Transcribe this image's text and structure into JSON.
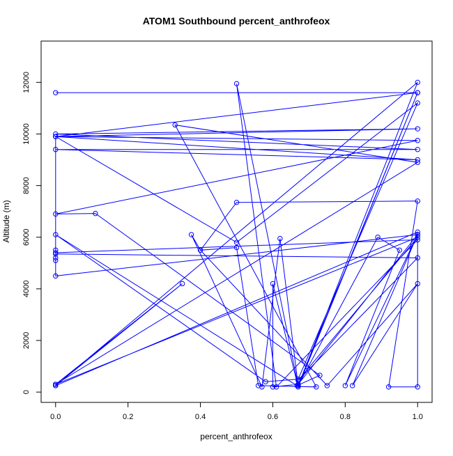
{
  "chart_data": {
    "type": "line",
    "title": "ATOM1 Southbound percent_anthrofeox",
    "xlabel": "percent_anthrofeox",
    "ylabel": "Altitude (m)",
    "xlim": [
      -0.04,
      1.04
    ],
    "ylim": [
      -400,
      13600
    ],
    "x_ticks": [
      0.0,
      0.2,
      0.4,
      0.6,
      0.8,
      1.0
    ],
    "x_tick_labels": [
      "0.0",
      "0.2",
      "0.4",
      "0.6",
      "0.8",
      "1.0"
    ],
    "y_ticks": [
      0,
      2000,
      4000,
      6000,
      8000,
      10000,
      12000
    ],
    "y_tick_labels": [
      "0",
      "2000",
      "4000",
      "6000",
      "8000",
      "10000",
      "12000"
    ],
    "grid": false,
    "legend": "none",
    "markers": "open-circle",
    "color": "#0000ff",
    "series": [
      {
        "x": [
          0.0,
          1.0,
          0.0,
          1.0,
          0.0,
          1.0,
          0.0,
          1.0,
          0.0,
          1.0,
          0.0,
          0.11,
          0.73,
          0.667,
          0.0,
          0.58,
          0.67,
          1.0,
          0.5,
          0.0,
          0.0,
          0.0,
          0.0,
          0.0,
          1.0,
          0.67,
          0.6,
          0.6,
          0.67,
          1.0,
          0.67,
          1.0,
          0.0,
          0.0,
          1.0,
          0.67,
          1.0,
          0.0,
          0.0,
          1.0,
          0.61,
          0.5,
          0.67,
          0.89,
          0.95,
          0.8,
          1.0,
          0.82,
          1.0,
          0.75,
          0.4,
          0.5,
          1.0,
          0.92,
          1.0,
          1.0,
          0.0,
          0.35,
          0.0,
          1.0,
          0.33,
          0.72,
          0.56,
          0.5,
          0.4,
          0.375,
          0.57,
          0.62,
          0.67
        ],
        "y": [
          11600,
          11600,
          9900,
          9000,
          9400,
          9400,
          10000,
          10200,
          9900,
          9750,
          6900,
          6920,
          650,
          250,
          6100,
          400,
          500,
          11200,
          5800,
          9900,
          5200,
          5100,
          5500,
          4500,
          6100,
          300,
          200,
          4200,
          200,
          11600,
          250,
          12000,
          250,
          300,
          6000,
          450,
          5200,
          5350,
          5400,
          5900,
          200,
          11950,
          250,
          6000,
          5500,
          250,
          6100,
          250,
          4200,
          250,
          5500,
          7350,
          7400,
          200,
          200,
          6200,
          250,
          4200,
          300,
          8900,
          10350,
          200,
          250,
          5600,
          5500,
          6100,
          200,
          5950,
          250
        ]
      }
    ]
  }
}
